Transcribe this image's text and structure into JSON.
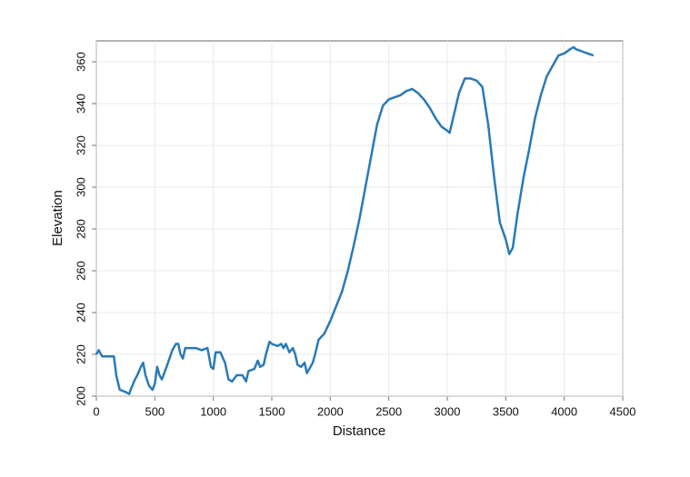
{
  "chart_data": {
    "type": "line",
    "xlabel": "Distance",
    "ylabel": "Elevation",
    "x": [
      0,
      20,
      50,
      100,
      150,
      170,
      200,
      250,
      280,
      300,
      330,
      350,
      380,
      400,
      420,
      450,
      480,
      500,
      520,
      540,
      560,
      600,
      650,
      680,
      700,
      720,
      740,
      760,
      800,
      850,
      900,
      950,
      980,
      1000,
      1020,
      1060,
      1100,
      1130,
      1160,
      1200,
      1250,
      1280,
      1300,
      1350,
      1380,
      1400,
      1430,
      1450,
      1480,
      1500,
      1550,
      1580,
      1600,
      1620,
      1650,
      1680,
      1700,
      1720,
      1750,
      1780,
      1800,
      1830,
      1850,
      1870,
      1900,
      1950,
      2000,
      2050,
      2100,
      2150,
      2200,
      2250,
      2300,
      2350,
      2400,
      2450,
      2500,
      2550,
      2600,
      2650,
      2700,
      2750,
      2800,
      2850,
      2900,
      2950,
      3000,
      3020,
      3050,
      3100,
      3150,
      3200,
      3250,
      3300,
      3350,
      3400,
      3450,
      3500,
      3530,
      3560,
      3600,
      3650,
      3700,
      3750,
      3800,
      3850,
      3900,
      3950,
      4000,
      4050,
      4080,
      4100,
      4150,
      4200,
      4250
    ],
    "values": [
      220,
      222,
      219,
      219,
      219,
      210,
      203,
      202,
      201,
      204,
      208,
      210,
      214,
      216,
      210,
      205,
      203,
      206,
      214,
      210,
      208,
      214,
      222,
      225,
      225,
      220,
      218,
      223,
      223,
      223,
      222,
      223,
      214,
      213,
      221,
      221,
      216,
      208,
      207,
      210,
      210,
      207,
      212,
      213,
      217,
      214,
      215,
      220,
      226,
      225,
      224,
      225,
      223,
      225,
      221,
      223,
      220,
      215,
      214,
      216,
      211,
      214,
      216,
      220,
      227,
      230,
      236,
      243,
      250,
      260,
      272,
      285,
      300,
      315,
      330,
      339,
      342,
      343,
      344,
      346,
      347,
      345,
      342,
      338,
      333,
      329,
      327,
      326,
      333,
      345,
      352,
      352,
      351,
      348,
      330,
      305,
      283,
      275,
      268,
      271,
      287,
      304,
      318,
      333,
      344,
      353,
      358,
      363,
      364,
      366,
      367,
      366,
      365,
      364,
      363
    ],
    "color": "#2a7ab8",
    "xlim": [
      0,
      4500
    ],
    "xticks": [
      0,
      500,
      1000,
      1500,
      2000,
      2500,
      3000,
      3500,
      4000,
      4500
    ],
    "ylim": [
      200,
      370
    ],
    "yticks": [
      200,
      220,
      240,
      260,
      280,
      300,
      320,
      340,
      360
    ],
    "grid": true
  }
}
